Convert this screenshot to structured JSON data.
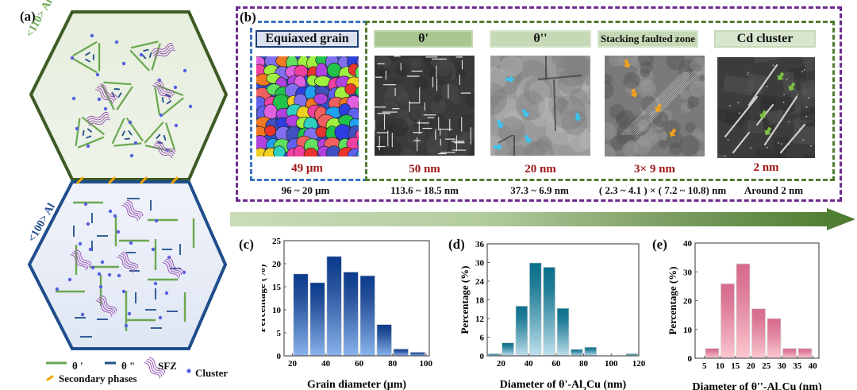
{
  "panel_a": {
    "label": "(a)",
    "top_hex_label": "<110> Al",
    "bottom_hex_label": "<100> Al",
    "legend": {
      "theta_prime": "θ '",
      "theta_double_prime": "θ \"",
      "sfz": "SFZ",
      "cluster": "Cluster",
      "secondary_phases": "Secondary phases"
    },
    "colors": {
      "theta_prime": "#6aa84f",
      "theta_double_prime": "#1f4e8c",
      "sfz": "#9b59b6",
      "cluster": "#5560e0",
      "secondary_phases": "#f0a500",
      "top_hex_border": "#3d5a24",
      "bottom_hex_border": "#1f4e8c"
    }
  },
  "panel_b": {
    "label": "(b)",
    "columns": [
      {
        "title": "Equiaxed grain",
        "scale": "49 μm",
        "range": "96 ~ 20 μm",
        "kind": "ebsd"
      },
      {
        "title": "θ'",
        "scale": "50 nm",
        "range": "113.6 ~ 18.5 nm",
        "kind": "tem-theta-prime"
      },
      {
        "title": "θ''",
        "scale": "20 nm",
        "range": "37.3 ~ 6.9 nm",
        "kind": "tem-theta-double-prime"
      },
      {
        "title": "Stacking faulted zone",
        "scale": "3× 9 nm",
        "range": "( 2.3 ~ 4.1 ) × ( 7.2 ~ 10.8) nm",
        "kind": "tem-sfz"
      },
      {
        "title": "Cd cluster",
        "scale": "2 nm",
        "range": "Around 2 nm",
        "kind": "tem-cluster"
      }
    ],
    "arrow_colors": {
      "start": "#c5dcb5",
      "end": "#4a7a2c"
    },
    "marker_colors": {
      "theta_double_prime": "#3cc4f0",
      "sfz": "#f4a21a",
      "cluster": "#7cc243"
    }
  },
  "chart_data": [
    {
      "id": "c",
      "label": "(c)",
      "type": "bar",
      "xlabel": "Grain diameter (μm)",
      "ylabel": "Percentage (%)",
      "x": [
        25,
        35,
        45,
        55,
        65,
        75,
        85,
        95
      ],
      "bin_width": 10,
      "values": [
        17.8,
        15.9,
        21.6,
        18.2,
        17.4,
        6.8,
        1.5,
        0.8
      ],
      "xlim": [
        15,
        102
      ],
      "ylim": [
        0,
        25
      ],
      "xticks": [
        20,
        40,
        60,
        80,
        100
      ],
      "yticks": [
        0,
        5,
        10,
        15,
        20,
        25
      ],
      "colors": {
        "top": "#0a3a8c",
        "bottom": "#8ab4ec"
      }
    },
    {
      "id": "d",
      "label": "(d)",
      "type": "bar",
      "xlabel": "Diameter of θ'-Al2Cu (nm)",
      "xlabel_parts": [
        "Diameter of θ'-Al",
        "2",
        "Cu (nm)"
      ],
      "ylabel": "Percentage (%)",
      "x": [
        15,
        25,
        35,
        45,
        55,
        65,
        75,
        85,
        95,
        105,
        115
      ],
      "bin_width": 10,
      "values": [
        0.7,
        4.2,
        16.0,
        29.9,
        28.5,
        15.3,
        2.1,
        2.8,
        0,
        0,
        0.7
      ],
      "xlim": [
        10,
        120
      ],
      "ylim": [
        0,
        36
      ],
      "xticks": [
        20,
        40,
        60,
        80,
        100,
        120
      ],
      "yticks": [
        0,
        6,
        12,
        18,
        24,
        30,
        36
      ],
      "colors": {
        "top": "#0a6f8c",
        "bottom": "#bfe0ec"
      }
    },
    {
      "id": "e",
      "label": "(e)",
      "type": "bar",
      "xlabel": "Diameter of θ''-Al3Cu (nm)",
      "xlabel_parts": [
        "Diameter of θ''-Al",
        "3",
        "Cu (nm)"
      ],
      "ylabel": "Percentage (%)",
      "x": [
        7.5,
        12.5,
        17.5,
        22.5,
        27.5,
        32.5,
        37.5
      ],
      "bin_width": 5,
      "values": [
        3.4,
        25.9,
        32.8,
        17.2,
        13.8,
        3.4,
        3.4
      ],
      "xlim": [
        2,
        42
      ],
      "ylim": [
        0,
        40
      ],
      "xticks": [
        5,
        10,
        15,
        20,
        25,
        30,
        35,
        40
      ],
      "yticks": [
        0,
        10,
        20,
        30,
        40
      ],
      "colors": {
        "top": "#d86a8c",
        "bottom": "#fbc8cf"
      }
    }
  ]
}
